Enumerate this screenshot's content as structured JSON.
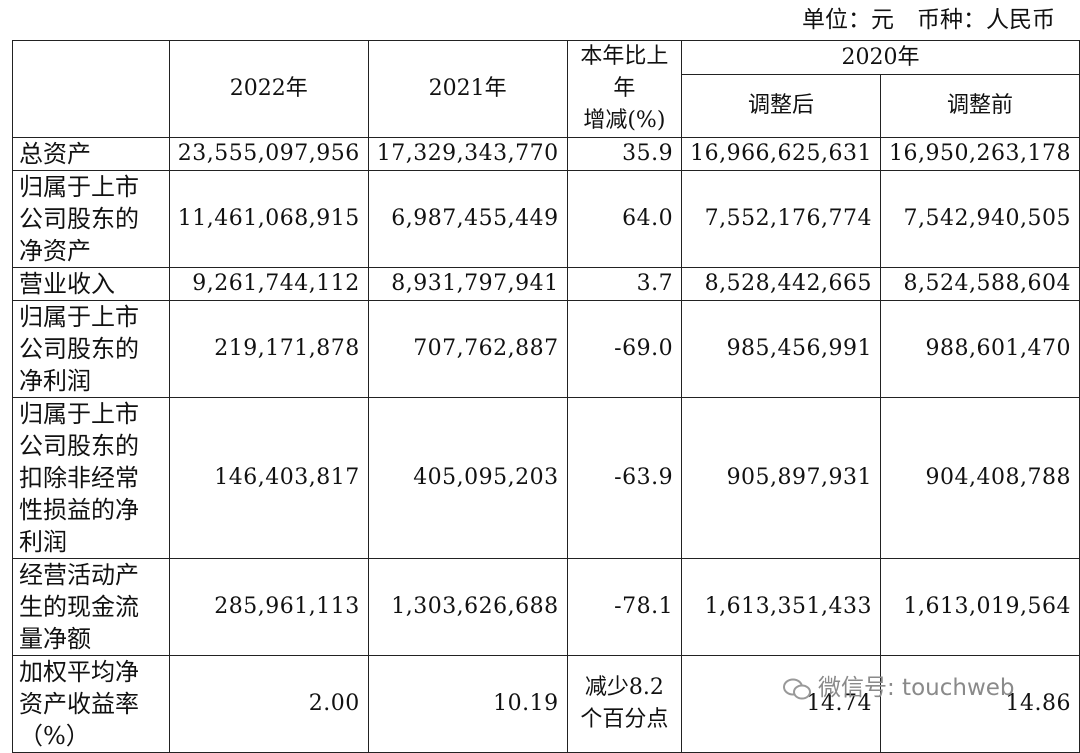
{
  "unit": "单位：元　币种：人民币",
  "header": {
    "col1": "2022年",
    "col2": "2021年",
    "change": [
      "本年比上",
      "年",
      "增减(%)"
    ],
    "year2020": "2020年",
    "adjusted": "调整后",
    "before": "调整前"
  },
  "table": {
    "rows": [
      [
        "总资产",
        "23,555,097,956",
        "17,329,343,770",
        "35.9",
        "16,966,625,631",
        "16,950,263,178"
      ],
      [
        "归属于上市公司股东的净资产",
        "11,461,068,915",
        "6,987,455,449",
        "64.0",
        "7,552,176,774",
        "7,542,940,505"
      ],
      [
        "营业收入",
        "9,261,744,112",
        "8,931,797,941",
        "3.7",
        "8,528,442,665",
        "8,524,588,604"
      ],
      [
        "归属于上市公司股东的净利润",
        "219,171,878",
        "707,762,887",
        "-69.0",
        "985,456,991",
        "988,601,470"
      ],
      [
        "归属于上市公司股东的扣除非经常性损益的净利润",
        "146,403,817",
        "405,095,203",
        "-63.9",
        "905,897,931",
        "904,408,788"
      ],
      [
        "经营活动产生的现金流量净额",
        "285,961,113",
        "1,303,626,688",
        "-78.1",
        "1,613,351,433",
        "1,613,019,564"
      ],
      [
        "加权平均净资产收益率（%）",
        "2.00",
        "10.19",
        [
          "减少8.2",
          "个百分点"
        ],
        "14.74",
        "14.86"
      ]
    ]
  },
  "watermark": "微信号: touchweb"
}
